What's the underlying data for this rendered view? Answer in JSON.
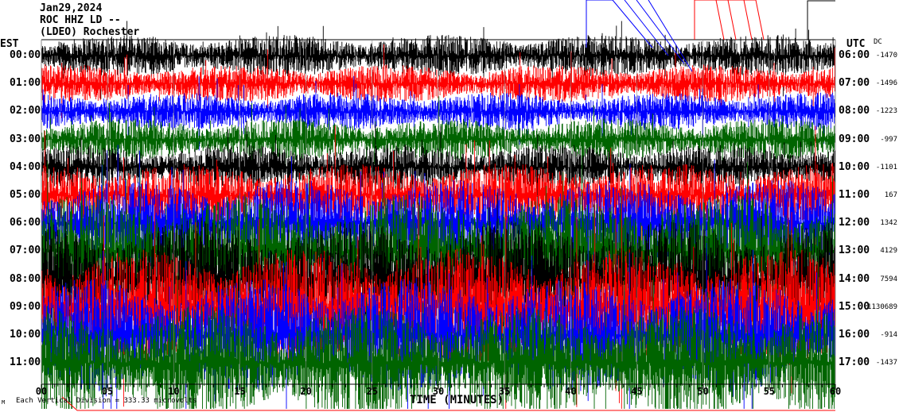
{
  "header": {
    "date": "Jan29,2024",
    "station": "ROC HHZ LD --",
    "location": "(LDEO) Rochester"
  },
  "left_axis_title": "EST",
  "right_axis_title": "UTC",
  "dc_title": "DC",
  "footer": {
    "scale_note": "Each Vertical Division = 333.33 microvolts",
    "corner_mark": "M"
  },
  "chart_data": {
    "type": "line",
    "title": "",
    "xlabel": "TIME (MINUTES)",
    "xlim": [
      0,
      60
    ],
    "x_ticks": [
      "00",
      "05",
      "10",
      "15",
      "20",
      "25",
      "30",
      "35",
      "40",
      "45",
      "50",
      "55",
      "60"
    ],
    "trace_colors": [
      "#000000",
      "#ff0000",
      "#0000ff",
      "#006400"
    ],
    "rows": [
      {
        "est": "00:00",
        "utc": "06:00",
        "dc": "-1470"
      },
      {
        "est": "01:00",
        "utc": "07:00",
        "dc": "-1496"
      },
      {
        "est": "02:00",
        "utc": "08:00",
        "dc": "-1223"
      },
      {
        "est": "03:00",
        "utc": "09:00",
        "dc": "-997"
      },
      {
        "est": "04:00",
        "utc": "10:00",
        "dc": "-1101"
      },
      {
        "est": "05:00",
        "utc": "11:00",
        "dc": "167"
      },
      {
        "est": "06:00",
        "utc": "12:00",
        "dc": "1342"
      },
      {
        "est": "07:00",
        "utc": "13:00",
        "dc": "4129"
      },
      {
        "est": "08:00",
        "utc": "14:00",
        "dc": "7594"
      },
      {
        "est": "09:00",
        "utc": "15:00",
        "dc": "-1130689"
      },
      {
        "est": "10:00",
        "utc": "16:00",
        "dc": "-914"
      },
      {
        "est": "11:00",
        "utc": "17:00",
        "dc": "-1437"
      }
    ]
  }
}
